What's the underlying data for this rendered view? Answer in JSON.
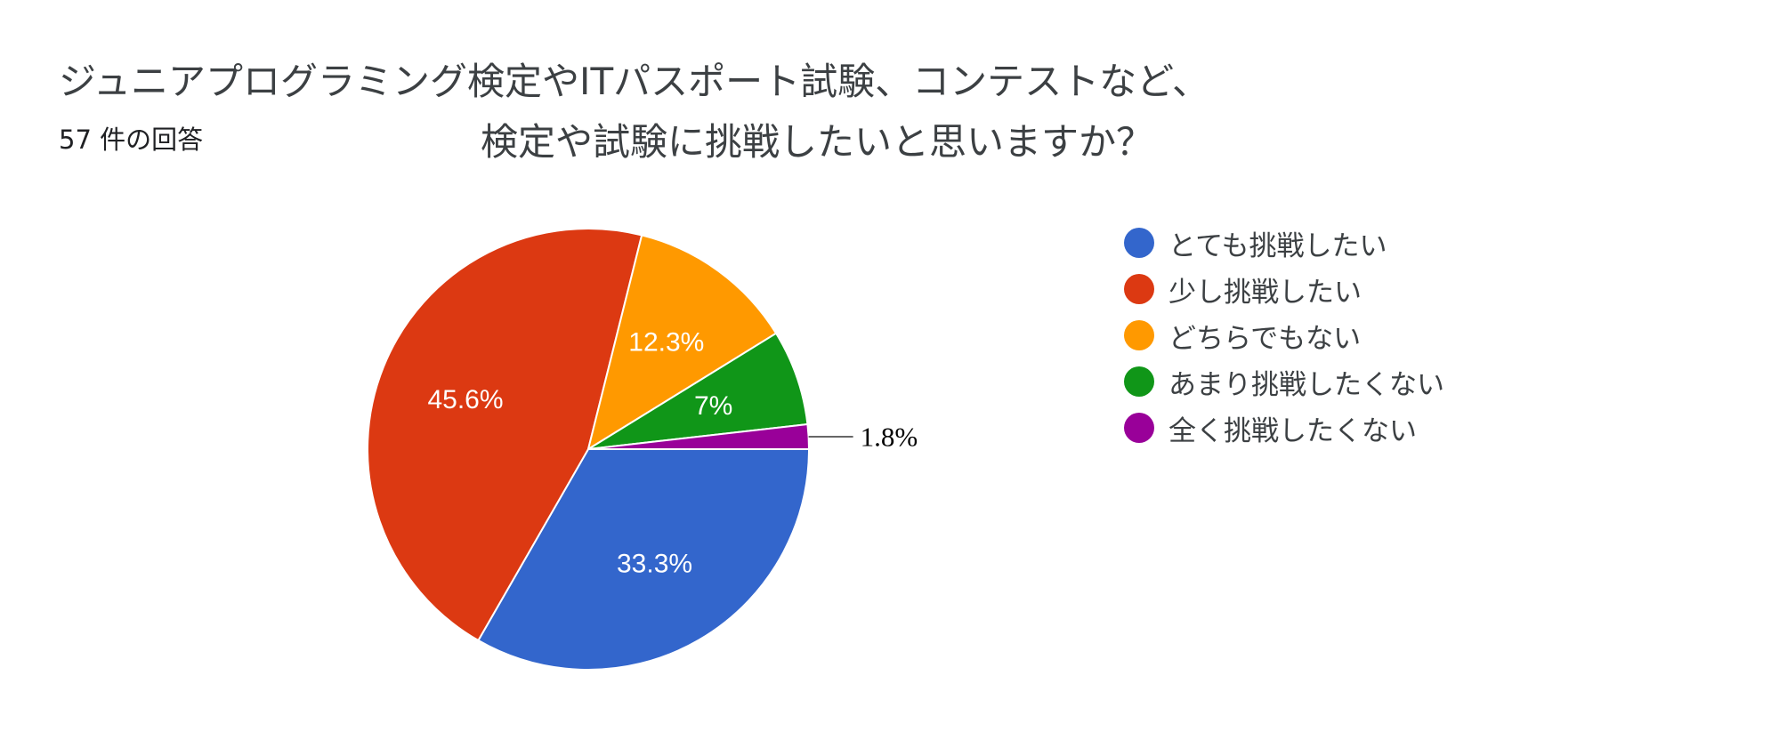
{
  "header": {
    "title_line1": "ジュニアプログラミング検定やITパスポート試験、コンテストなど、",
    "title_line2": "検定や試験に挑戦したいと思いますか？",
    "response_count": "57 件の回答"
  },
  "chart_data": {
    "type": "pie",
    "start": "3 o'clock, clockwise",
    "slices": [
      {
        "label": "とても挑戦したい",
        "value": 33.3,
        "display": "33.3%",
        "color": "#3366cc"
      },
      {
        "label": "少し挑戦したい",
        "value": 45.6,
        "display": "45.6%",
        "color": "#dc3912"
      },
      {
        "label": "どちらでもない",
        "value": 12.3,
        "display": "12.3%",
        "color": "#ff9900"
      },
      {
        "label": "あまり挑戦したくない",
        "value": 7.0,
        "display": "7%",
        "color": "#109618"
      },
      {
        "label": "全く挑戦したくない",
        "value": 1.8,
        "display": "1.8%",
        "color": "#990099"
      }
    ],
    "legend_position": "right"
  }
}
